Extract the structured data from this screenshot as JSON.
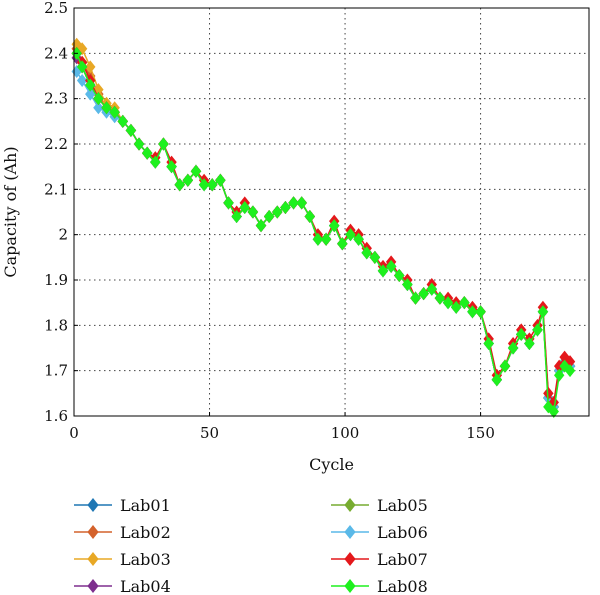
{
  "chart_data": {
    "type": "line",
    "title": "",
    "xlabel": "Cycle",
    "ylabel": "Capacity of (Ah)",
    "xlim": [
      0,
      190
    ],
    "ylim": [
      1.6,
      2.5
    ],
    "x_ticks": [
      0,
      50,
      100,
      150
    ],
    "y_ticks": [
      1.6,
      1.7,
      1.8,
      1.9,
      2.0,
      2.1,
      2.2,
      2.3,
      2.4,
      2.5
    ],
    "y_tick_labels": [
      "1.6",
      "1.7",
      "1.8",
      "1.9",
      "2",
      "2.1",
      "2.2",
      "2.3",
      "2.4",
      "2.5"
    ],
    "grid": true,
    "legend_position": "bottom",
    "x": [
      1,
      3,
      6,
      9,
      12,
      15,
      18,
      21,
      24,
      27,
      30,
      33,
      36,
      39,
      42,
      45,
      48,
      51,
      54,
      57,
      60,
      63,
      66,
      69,
      72,
      75,
      78,
      81,
      84,
      87,
      90,
      93,
      96,
      99,
      102,
      105,
      108,
      111,
      114,
      117,
      120,
      123,
      126,
      129,
      132,
      135,
      138,
      141,
      144,
      147,
      150,
      153,
      156,
      159,
      162,
      165,
      168,
      171,
      173,
      175,
      177,
      179,
      181,
      183
    ],
    "series": [
      {
        "name": "Lab01",
        "color": "#1f77b4",
        "values": [
          2.4,
          2.37,
          2.33,
          2.3,
          2.28,
          2.27,
          2.25,
          2.23,
          2.2,
          2.18,
          2.16,
          2.2,
          2.15,
          2.11,
          2.12,
          2.14,
          2.11,
          2.11,
          2.12,
          2.07,
          2.04,
          2.06,
          2.05,
          2.02,
          2.04,
          2.05,
          2.06,
          2.07,
          2.07,
          2.04,
          1.99,
          1.99,
          2.02,
          1.98,
          2.0,
          1.99,
          1.96,
          1.95,
          1.92,
          1.93,
          1.91,
          1.89,
          1.86,
          1.87,
          1.88,
          1.86,
          1.85,
          1.84,
          1.85,
          1.83,
          1.83,
          1.76,
          1.68,
          1.71,
          1.75,
          1.78,
          1.76,
          1.79,
          1.83,
          1.64,
          1.62,
          1.7,
          1.72,
          1.71
        ]
      },
      {
        "name": "Lab02",
        "color": "#d4622c",
        "values": [
          2.41,
          2.38,
          2.35,
          2.31,
          2.28,
          2.27,
          2.25,
          2.23,
          2.2,
          2.18,
          2.16,
          2.2,
          2.15,
          2.11,
          2.12,
          2.14,
          2.11,
          2.11,
          2.12,
          2.07,
          2.04,
          2.06,
          2.05,
          2.02,
          2.04,
          2.05,
          2.06,
          2.07,
          2.07,
          2.04,
          1.99,
          1.99,
          2.02,
          1.98,
          2.0,
          1.99,
          1.96,
          1.95,
          1.92,
          1.93,
          1.91,
          1.89,
          1.86,
          1.87,
          1.88,
          1.86,
          1.85,
          1.84,
          1.85,
          1.83,
          1.83,
          1.76,
          1.68,
          1.71,
          1.75,
          1.78,
          1.76,
          1.79,
          1.83,
          1.64,
          1.62,
          1.7,
          1.72,
          1.71
        ]
      },
      {
        "name": "Lab03",
        "color": "#e8a825",
        "values": [
          2.42,
          2.41,
          2.37,
          2.32,
          2.29,
          2.28,
          2.25,
          2.23,
          2.2,
          2.18,
          2.16,
          2.2,
          2.15,
          2.11,
          2.12,
          2.14,
          2.11,
          2.11,
          2.12,
          2.07,
          2.04,
          2.06,
          2.05,
          2.02,
          2.04,
          2.05,
          2.06,
          2.07,
          2.07,
          2.04,
          1.99,
          1.99,
          2.02,
          1.98,
          2.0,
          1.99,
          1.96,
          1.95,
          1.92,
          1.93,
          1.91,
          1.89,
          1.86,
          1.87,
          1.88,
          1.86,
          1.85,
          1.84,
          1.85,
          1.83,
          1.83,
          1.76,
          1.68,
          1.71,
          1.75,
          1.78,
          1.76,
          1.79,
          1.83,
          1.64,
          1.62,
          1.7,
          1.72,
          1.71
        ]
      },
      {
        "name": "Lab04",
        "color": "#7e2f8e",
        "values": [
          2.39,
          2.37,
          2.33,
          2.3,
          2.28,
          2.27,
          2.25,
          2.23,
          2.2,
          2.18,
          2.16,
          2.2,
          2.15,
          2.11,
          2.12,
          2.14,
          2.11,
          2.11,
          2.12,
          2.07,
          2.04,
          2.06,
          2.05,
          2.02,
          2.04,
          2.05,
          2.06,
          2.07,
          2.07,
          2.04,
          1.99,
          1.99,
          2.02,
          1.98,
          2.0,
          1.99,
          1.96,
          1.95,
          1.92,
          1.93,
          1.91,
          1.89,
          1.86,
          1.87,
          1.88,
          1.86,
          1.85,
          1.84,
          1.85,
          1.83,
          1.83,
          1.76,
          1.68,
          1.71,
          1.75,
          1.78,
          1.76,
          1.79,
          1.83,
          1.64,
          1.62,
          1.7,
          1.72,
          1.71
        ]
      },
      {
        "name": "Lab05",
        "color": "#77ac30",
        "values": [
          2.4,
          2.38,
          2.34,
          2.3,
          2.28,
          2.27,
          2.25,
          2.23,
          2.2,
          2.18,
          2.16,
          2.2,
          2.15,
          2.11,
          2.12,
          2.14,
          2.11,
          2.11,
          2.12,
          2.07,
          2.04,
          2.06,
          2.05,
          2.02,
          2.04,
          2.05,
          2.06,
          2.07,
          2.07,
          2.04,
          1.99,
          1.99,
          2.02,
          1.98,
          2.0,
          1.99,
          1.96,
          1.95,
          1.92,
          1.93,
          1.91,
          1.89,
          1.86,
          1.87,
          1.88,
          1.86,
          1.85,
          1.84,
          1.85,
          1.83,
          1.83,
          1.76,
          1.68,
          1.71,
          1.75,
          1.78,
          1.76,
          1.79,
          1.83,
          1.64,
          1.62,
          1.7,
          1.72,
          1.71
        ]
      },
      {
        "name": "Lab06",
        "color": "#5ab9e8",
        "values": [
          2.36,
          2.34,
          2.31,
          2.28,
          2.27,
          2.26,
          2.25,
          2.23,
          2.2,
          2.18,
          2.16,
          2.2,
          2.15,
          2.11,
          2.12,
          2.14,
          2.11,
          2.11,
          2.12,
          2.07,
          2.04,
          2.06,
          2.05,
          2.02,
          2.04,
          2.05,
          2.06,
          2.07,
          2.07,
          2.04,
          1.99,
          1.99,
          2.02,
          1.98,
          2.0,
          1.99,
          1.96,
          1.95,
          1.92,
          1.93,
          1.91,
          1.89,
          1.86,
          1.87,
          1.88,
          1.86,
          1.85,
          1.84,
          1.85,
          1.83,
          1.83,
          1.76,
          1.68,
          1.71,
          1.75,
          1.78,
          1.76,
          1.79,
          1.83,
          1.64,
          1.62,
          1.7,
          1.72,
          1.71
        ]
      },
      {
        "name": "Lab07",
        "color": "#e4181b",
        "values": [
          2.4,
          2.38,
          2.34,
          2.3,
          2.28,
          2.27,
          2.25,
          2.23,
          2.2,
          2.18,
          2.17,
          2.2,
          2.16,
          2.11,
          2.12,
          2.14,
          2.12,
          2.11,
          2.12,
          2.07,
          2.05,
          2.07,
          2.05,
          2.02,
          2.04,
          2.05,
          2.06,
          2.07,
          2.07,
          2.04,
          2.0,
          1.99,
          2.03,
          1.98,
          2.01,
          2.0,
          1.97,
          1.95,
          1.93,
          1.94,
          1.91,
          1.9,
          1.86,
          1.87,
          1.89,
          1.86,
          1.86,
          1.85,
          1.85,
          1.84,
          1.83,
          1.77,
          1.69,
          1.71,
          1.76,
          1.79,
          1.77,
          1.8,
          1.84,
          1.65,
          1.63,
          1.71,
          1.73,
          1.72
        ]
      },
      {
        "name": "Lab08",
        "color": "#1ef01e",
        "values": [
          2.4,
          2.37,
          2.33,
          2.3,
          2.28,
          2.27,
          2.25,
          2.23,
          2.2,
          2.18,
          2.16,
          2.2,
          2.15,
          2.11,
          2.12,
          2.14,
          2.11,
          2.11,
          2.12,
          2.07,
          2.04,
          2.06,
          2.05,
          2.02,
          2.04,
          2.05,
          2.06,
          2.07,
          2.07,
          2.04,
          1.99,
          1.99,
          2.02,
          1.98,
          2.0,
          1.99,
          1.96,
          1.95,
          1.92,
          1.93,
          1.91,
          1.89,
          1.86,
          1.87,
          1.88,
          1.86,
          1.85,
          1.84,
          1.85,
          1.83,
          1.83,
          1.76,
          1.68,
          1.71,
          1.75,
          1.78,
          1.76,
          1.79,
          1.83,
          1.62,
          1.61,
          1.69,
          1.71,
          1.7
        ]
      }
    ]
  }
}
